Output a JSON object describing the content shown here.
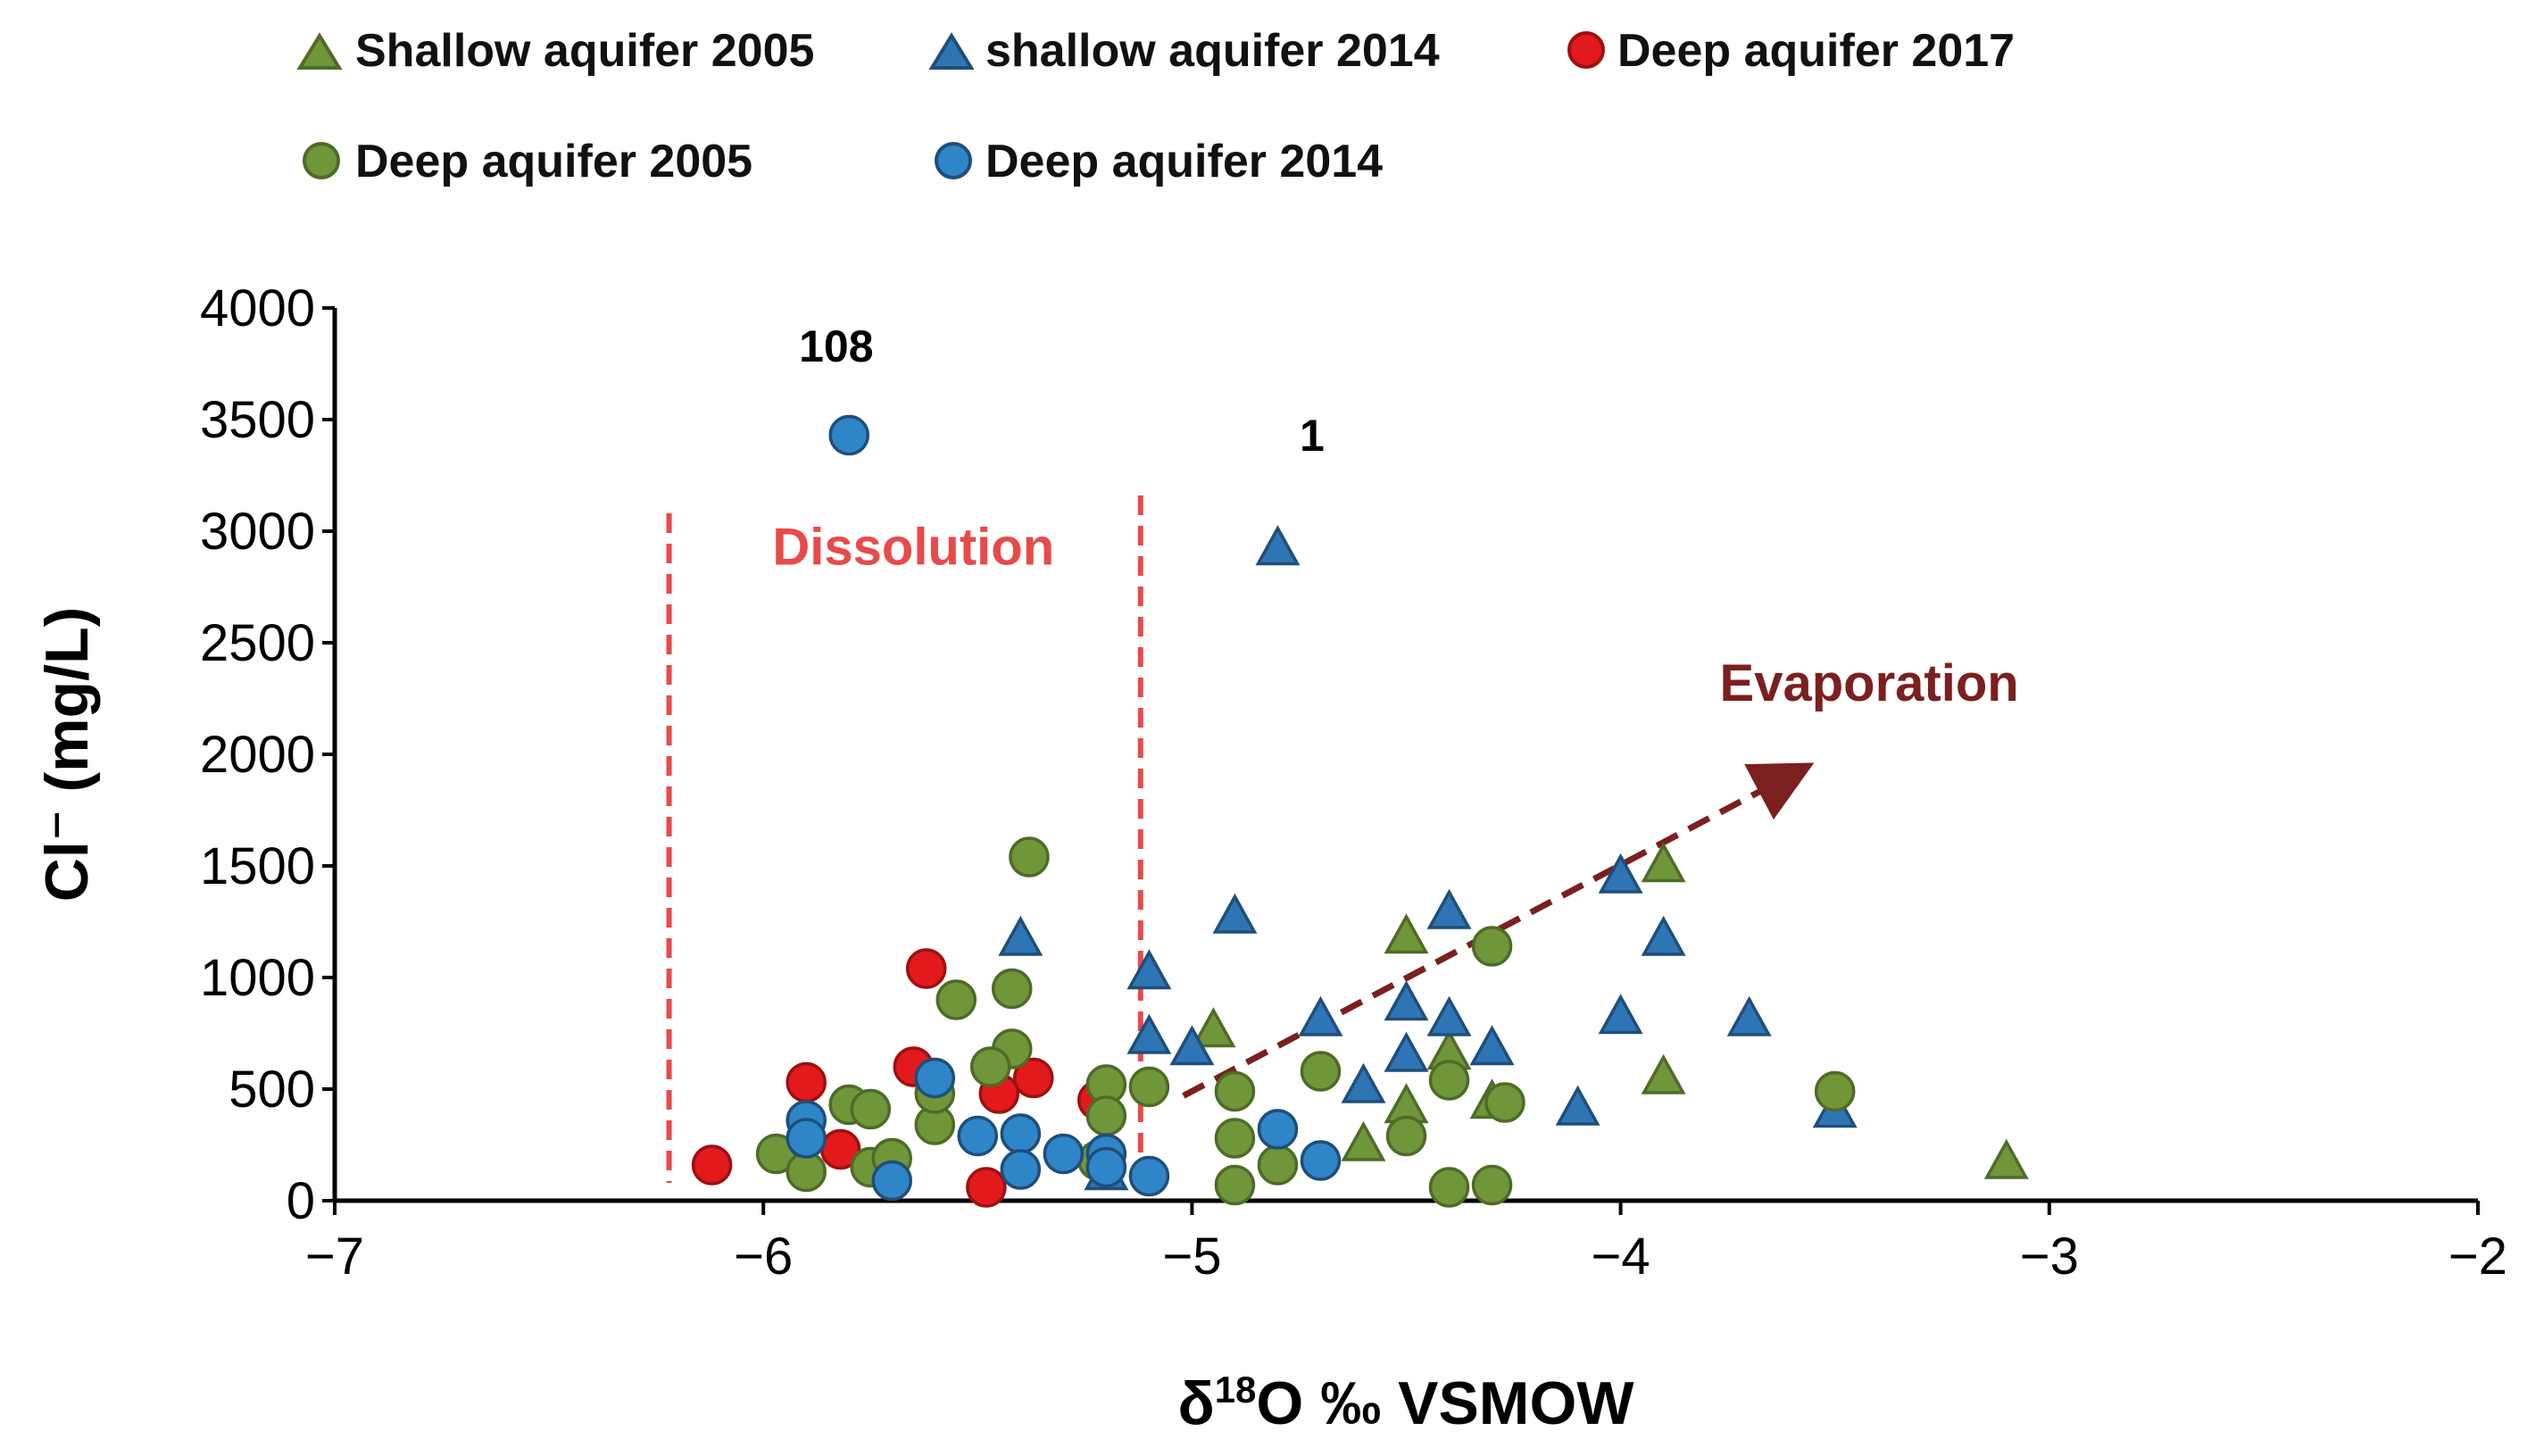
{
  "chart_data": {
    "type": "scatter",
    "title": "",
    "xlabel": "δ18O ‰ VSMOW",
    "ylabel": "Cl⁻ (mg/L)",
    "xlim": [
      -7,
      -2
    ],
    "ylim": [
      0,
      4000
    ],
    "x_ticks": [
      -7,
      -6,
      -5,
      -4,
      -3,
      -2
    ],
    "x_tick_labels": [
      "−7",
      "−6",
      "−5",
      "−4",
      "−3",
      "−2"
    ],
    "y_ticks": [
      0,
      500,
      1000,
      1500,
      2000,
      2500,
      3000,
      3500,
      4000
    ],
    "y_tick_labels": [
      "0",
      "500",
      "1000",
      "1500",
      "2000",
      "2500",
      "3000",
      "3500",
      "4000"
    ],
    "grid": false,
    "legend_position": "top",
    "series": [
      {
        "name": "Shallow aquifer 2005",
        "marker": "triangle",
        "color": "#70963a",
        "edge": "#4e6b27",
        "points": [
          {
            "x": -3.9,
            "y": 1500
          },
          {
            "x": -3.9,
            "y": 550
          },
          {
            "x": -3.1,
            "y": 170
          },
          {
            "x": -4.5,
            "y": 1180
          },
          {
            "x": -4.6,
            "y": 250
          },
          {
            "x": -4.95,
            "y": 760
          },
          {
            "x": -4.4,
            "y": 660
          },
          {
            "x": -4.3,
            "y": 440
          },
          {
            "x": -4.5,
            "y": 420
          }
        ]
      },
      {
        "name": "shallow aquifer 2014",
        "marker": "triangle",
        "color": "#2e75b6",
        "edge": "#1f4e79",
        "points": [
          {
            "x": -4.8,
            "y": 2920
          },
          {
            "x": -4.0,
            "y": 1450
          },
          {
            "x": -4.4,
            "y": 1290
          },
          {
            "x": -3.9,
            "y": 1170
          },
          {
            "x": -5.4,
            "y": 1170
          },
          {
            "x": -4.9,
            "y": 1270
          },
          {
            "x": -5.1,
            "y": 1020
          },
          {
            "x": -4.5,
            "y": 880
          },
          {
            "x": -4.4,
            "y": 810
          },
          {
            "x": -4.7,
            "y": 810
          },
          {
            "x": -4.0,
            "y": 820
          },
          {
            "x": -3.7,
            "y": 810
          },
          {
            "x": -5.1,
            "y": 730
          },
          {
            "x": -5.0,
            "y": 680
          },
          {
            "x": -4.3,
            "y": 680
          },
          {
            "x": -4.5,
            "y": 650
          },
          {
            "x": -4.6,
            "y": 510
          },
          {
            "x": -4.1,
            "y": 410
          },
          {
            "x": -3.5,
            "y": 400
          },
          {
            "x": -5.2,
            "y": 120
          }
        ]
      },
      {
        "name": "Deep aquifer 2017",
        "marker": "circle",
        "color": "#e31a1c",
        "edge": "#9e1010",
        "points": [
          {
            "x": -5.62,
            "y": 1040
          },
          {
            "x": -5.65,
            "y": 600
          },
          {
            "x": -5.9,
            "y": 530
          },
          {
            "x": -5.45,
            "y": 480
          },
          {
            "x": -5.22,
            "y": 450
          },
          {
            "x": -5.37,
            "y": 550
          },
          {
            "x": -6.12,
            "y": 160
          },
          {
            "x": -5.82,
            "y": 230
          },
          {
            "x": -5.48,
            "y": 60
          }
        ]
      },
      {
        "name": "Deep aquifer 2005",
        "marker": "circle",
        "color": "#70963a",
        "edge": "#4e6b27",
        "points": [
          {
            "x": -5.38,
            "y": 1540
          },
          {
            "x": -5.42,
            "y": 950
          },
          {
            "x": -5.55,
            "y": 900
          },
          {
            "x": -5.42,
            "y": 680
          },
          {
            "x": -5.47,
            "y": 600
          },
          {
            "x": -5.2,
            "y": 520
          },
          {
            "x": -5.1,
            "y": 510
          },
          {
            "x": -4.7,
            "y": 580
          },
          {
            "x": -4.9,
            "y": 490
          },
          {
            "x": -4.4,
            "y": 540
          },
          {
            "x": -4.3,
            "y": 1140
          },
          {
            "x": -3.5,
            "y": 490
          },
          {
            "x": -5.8,
            "y": 430
          },
          {
            "x": -5.75,
            "y": 410
          },
          {
            "x": -5.6,
            "y": 340
          },
          {
            "x": -5.2,
            "y": 380
          },
          {
            "x": -4.27,
            "y": 440
          },
          {
            "x": -4.9,
            "y": 280
          },
          {
            "x": -4.8,
            "y": 160
          },
          {
            "x": -4.5,
            "y": 290
          },
          {
            "x": -4.9,
            "y": 70
          },
          {
            "x": -4.4,
            "y": 60
          },
          {
            "x": -4.3,
            "y": 70
          },
          {
            "x": -5.97,
            "y": 210
          },
          {
            "x": -5.9,
            "y": 130
          },
          {
            "x": -5.75,
            "y": 150
          },
          {
            "x": -5.7,
            "y": 190
          },
          {
            "x": -5.22,
            "y": 180
          },
          {
            "x": -5.6,
            "y": 480
          }
        ]
      },
      {
        "name": "Deep aquifer 2014",
        "marker": "circle",
        "color": "#2e86c8",
        "edge": "#1f4e79",
        "points": [
          {
            "x": -5.8,
            "y": 3430
          },
          {
            "x": -5.6,
            "y": 550
          },
          {
            "x": -5.9,
            "y": 360
          },
          {
            "x": -5.9,
            "y": 280
          },
          {
            "x": -5.5,
            "y": 290
          },
          {
            "x": -5.4,
            "y": 300
          },
          {
            "x": -5.3,
            "y": 210
          },
          {
            "x": -5.2,
            "y": 210
          },
          {
            "x": -5.4,
            "y": 140
          },
          {
            "x": -5.2,
            "y": 150
          },
          {
            "x": -5.7,
            "y": 90
          },
          {
            "x": -5.1,
            "y": 110
          },
          {
            "x": -4.8,
            "y": 320
          },
          {
            "x": -4.7,
            "y": 180
          }
        ]
      }
    ],
    "annotations": [
      {
        "text": "108",
        "x": -5.83,
        "y": 3760,
        "color": "#000000"
      },
      {
        "text": "1",
        "x": -4.72,
        "y": 3360,
        "color": "#000000"
      },
      {
        "text": "Dissolution",
        "x": -5.65,
        "y": 2850,
        "color": "#e84a4a"
      },
      {
        "text": "Evaporation",
        "x": -3.42,
        "y": 2240,
        "color": "#7b1f1f"
      }
    ],
    "reference_lines": [
      {
        "x": -6.22,
        "y_from": 80,
        "y_to": 3080,
        "style": "dashed",
        "color": "#e84a4a"
      },
      {
        "x": -5.12,
        "y_from": 160,
        "y_to": 3160,
        "style": "dashed",
        "color": "#e84a4a"
      }
    ],
    "trend_arrow": {
      "from": {
        "x": -5.02,
        "y": 470
      },
      "to": {
        "x": -3.6,
        "y": 1910
      },
      "style": "dashed",
      "color": "#7b1f1f"
    }
  },
  "legend": {
    "items": [
      {
        "label": "Shallow aquifer 2005",
        "series": 0
      },
      {
        "label": "shallow aquifer 2014",
        "series": 1
      },
      {
        "label": "Deep aquifer 2017",
        "series": 2
      },
      {
        "label": "Deep aquifer 2005",
        "series": 3
      },
      {
        "label": "Deep aquifer 2014",
        "series": 4
      }
    ]
  }
}
